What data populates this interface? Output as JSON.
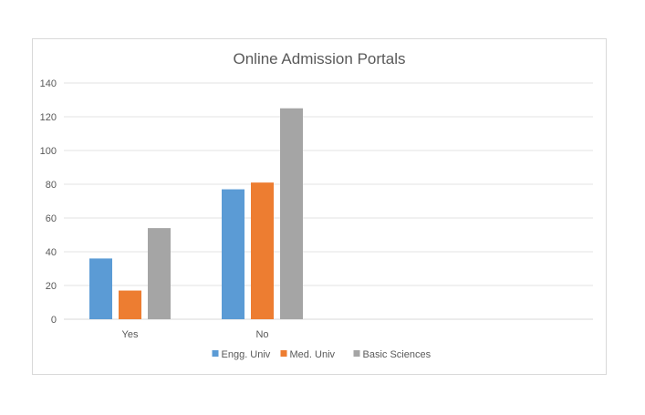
{
  "chart_data": {
    "type": "bar",
    "title": "Online Admission Portals",
    "categories": [
      "Yes",
      "No"
    ],
    "series": [
      {
        "name": "Engg. Univ",
        "values": [
          36,
          77
        ],
        "color": "#5b9bd5"
      },
      {
        "name": "Med. Univ",
        "values": [
          17,
          81
        ],
        "color": "#ed7d31"
      },
      {
        "name": "Basic Sciences",
        "values": [
          54,
          125
        ],
        "color": "#a5a5a5"
      }
    ],
    "xlabel": "",
    "ylabel": "",
    "ylim": [
      0,
      140
    ],
    "yticks": [
      0,
      20,
      40,
      60,
      80,
      100,
      120,
      140
    ],
    "grid": true,
    "legend": "bottom"
  }
}
